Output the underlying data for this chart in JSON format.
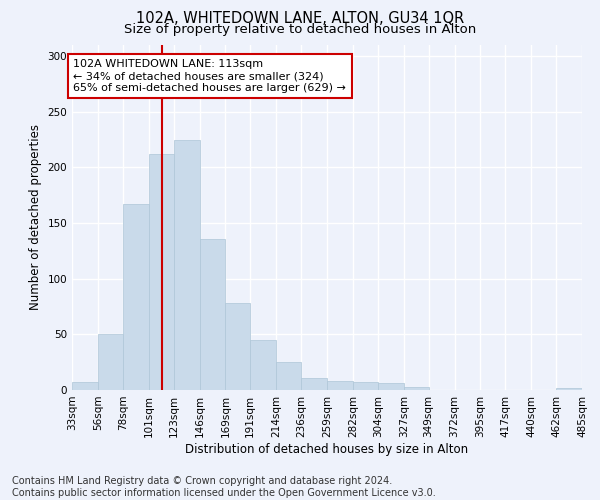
{
  "title": "102A, WHITEDOWN LANE, ALTON, GU34 1QR",
  "subtitle": "Size of property relative to detached houses in Alton",
  "xlabel": "Distribution of detached houses by size in Alton",
  "ylabel": "Number of detached properties",
  "footer_line1": "Contains HM Land Registry data © Crown copyright and database right 2024.",
  "footer_line2": "Contains public sector information licensed under the Open Government Licence v3.0.",
  "bar_color": "#c9daea",
  "bar_edge_color": "#aec6d8",
  "vline_color": "#cc0000",
  "vline_x": 113,
  "annotation_text": "102A WHITEDOWN LANE: 113sqm\n← 34% of detached houses are smaller (324)\n65% of semi-detached houses are larger (629) →",
  "annotation_box_facecolor": "#ffffff",
  "annotation_box_edgecolor": "#cc0000",
  "bin_edges": [
    33,
    56,
    78,
    101,
    123,
    146,
    169,
    191,
    214,
    236,
    259,
    282,
    304,
    327,
    349,
    372,
    395,
    417,
    440,
    462,
    485
  ],
  "bar_heights": [
    7,
    50,
    167,
    212,
    225,
    136,
    78,
    45,
    25,
    11,
    8,
    7,
    6,
    3,
    0,
    0,
    0,
    0,
    0,
    2
  ],
  "ylim": [
    0,
    310
  ],
  "yticks": [
    0,
    50,
    100,
    150,
    200,
    250,
    300
  ],
  "background_color": "#eef2fb",
  "grid_color": "#ffffff",
  "title_fontsize": 10.5,
  "subtitle_fontsize": 9.5,
  "axis_label_fontsize": 8.5,
  "tick_fontsize": 7.5,
  "annotation_fontsize": 8,
  "footer_fontsize": 7
}
